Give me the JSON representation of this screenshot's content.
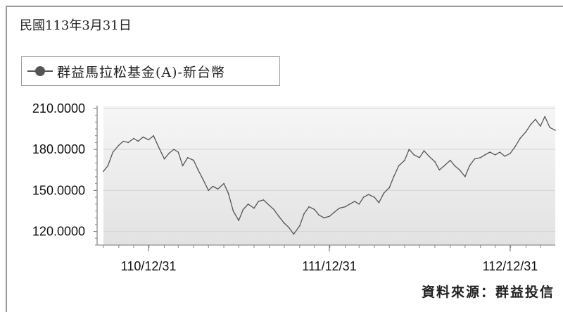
{
  "header": {
    "date": "民國113年3月31日"
  },
  "legend": {
    "label": "群益馬拉松基金(A)-新台幣",
    "color": "#555555"
  },
  "source": "資料來源：群益投信",
  "chart_data": {
    "type": "line",
    "title": "",
    "xlabel": "",
    "ylabel": "",
    "ylim": [
      110,
      212
    ],
    "yticks": [
      120,
      150,
      180,
      210
    ],
    "ytick_labels": [
      "120.0000",
      "150.0000",
      "180.0000",
      "210.0000"
    ],
    "xticks": [
      "110/12/31",
      "111/12/31",
      "112/12/31"
    ],
    "x_range": [
      "110/10/01",
      "113/03/31"
    ],
    "grid": true,
    "legend_position": "top-left",
    "series": [
      {
        "name": "群益馬拉松基金(A)-新台幣",
        "points": [
          [
            "110/10/01",
            164
          ],
          [
            "110/10/10",
            168
          ],
          [
            "110/10/20",
            178
          ],
          [
            "110/11/01",
            183
          ],
          [
            "110/11/10",
            186
          ],
          [
            "110/11/20",
            185
          ],
          [
            "110/12/01",
            188
          ],
          [
            "110/12/10",
            186
          ],
          [
            "110/12/20",
            189
          ],
          [
            "110/12/31",
            187
          ],
          [
            "111/01/10",
            190
          ],
          [
            "111/01/20",
            182
          ],
          [
            "111/02/01",
            173
          ],
          [
            "111/02/10",
            177
          ],
          [
            "111/02/20",
            180
          ],
          [
            "111/03/01",
            178
          ],
          [
            "111/03/10",
            168
          ],
          [
            "111/03/20",
            174
          ],
          [
            "111/04/01",
            172
          ],
          [
            "111/04/10",
            165
          ],
          [
            "111/04/20",
            158
          ],
          [
            "111/05/01",
            150
          ],
          [
            "111/05/10",
            153
          ],
          [
            "111/05/20",
            151
          ],
          [
            "111/06/01",
            155
          ],
          [
            "111/06/10",
            148
          ],
          [
            "111/06/20",
            135
          ],
          [
            "111/07/01",
            128
          ],
          [
            "111/07/10",
            136
          ],
          [
            "111/07/20",
            140
          ],
          [
            "111/08/01",
            137
          ],
          [
            "111/08/10",
            142
          ],
          [
            "111/08/20",
            143
          ],
          [
            "111/09/01",
            139
          ],
          [
            "111/09/10",
            136
          ],
          [
            "111/09/20",
            131
          ],
          [
            "111/10/01",
            126
          ],
          [
            "111/10/10",
            123
          ],
          [
            "111/10/20",
            118
          ],
          [
            "111/11/01",
            124
          ],
          [
            "111/11/10",
            133
          ],
          [
            "111/11/20",
            138
          ],
          [
            "111/12/01",
            136
          ],
          [
            "111/12/10",
            132
          ],
          [
            "111/12/20",
            130
          ],
          [
            "111/12/31",
            131
          ],
          [
            "112/01/10",
            134
          ],
          [
            "112/01/20",
            137
          ],
          [
            "112/02/01",
            138
          ],
          [
            "112/02/10",
            140
          ],
          [
            "112/02/20",
            142
          ],
          [
            "112/03/01",
            140
          ],
          [
            "112/03/10",
            145
          ],
          [
            "112/03/20",
            147
          ],
          [
            "112/04/01",
            145
          ],
          [
            "112/04/10",
            141
          ],
          [
            "112/04/20",
            148
          ],
          [
            "112/05/01",
            152
          ],
          [
            "112/05/10",
            160
          ],
          [
            "112/05/20",
            168
          ],
          [
            "112/06/01",
            172
          ],
          [
            "112/06/10",
            180
          ],
          [
            "112/06/20",
            176
          ],
          [
            "112/07/01",
            174
          ],
          [
            "112/07/10",
            179
          ],
          [
            "112/07/20",
            175
          ],
          [
            "112/08/01",
            171
          ],
          [
            "112/08/10",
            165
          ],
          [
            "112/08/20",
            168
          ],
          [
            "112/09/01",
            172
          ],
          [
            "112/09/10",
            168
          ],
          [
            "112/09/20",
            165
          ],
          [
            "112/10/01",
            160
          ],
          [
            "112/10/10",
            168
          ],
          [
            "112/10/20",
            173
          ],
          [
            "112/11/01",
            174
          ],
          [
            "112/11/10",
            176
          ],
          [
            "112/11/20",
            178
          ],
          [
            "112/12/01",
            176
          ],
          [
            "112/12/10",
            178
          ],
          [
            "112/12/20",
            175
          ],
          [
            "112/12/31",
            177
          ],
          [
            "113/01/10",
            182
          ],
          [
            "113/01/20",
            188
          ],
          [
            "113/02/01",
            193
          ],
          [
            "113/02/10",
            198
          ],
          [
            "113/02/20",
            202
          ],
          [
            "113/03/01",
            197
          ],
          [
            "113/03/10",
            204
          ],
          [
            "113/03/20",
            196
          ],
          [
            "113/03/31",
            194
          ]
        ]
      }
    ]
  }
}
